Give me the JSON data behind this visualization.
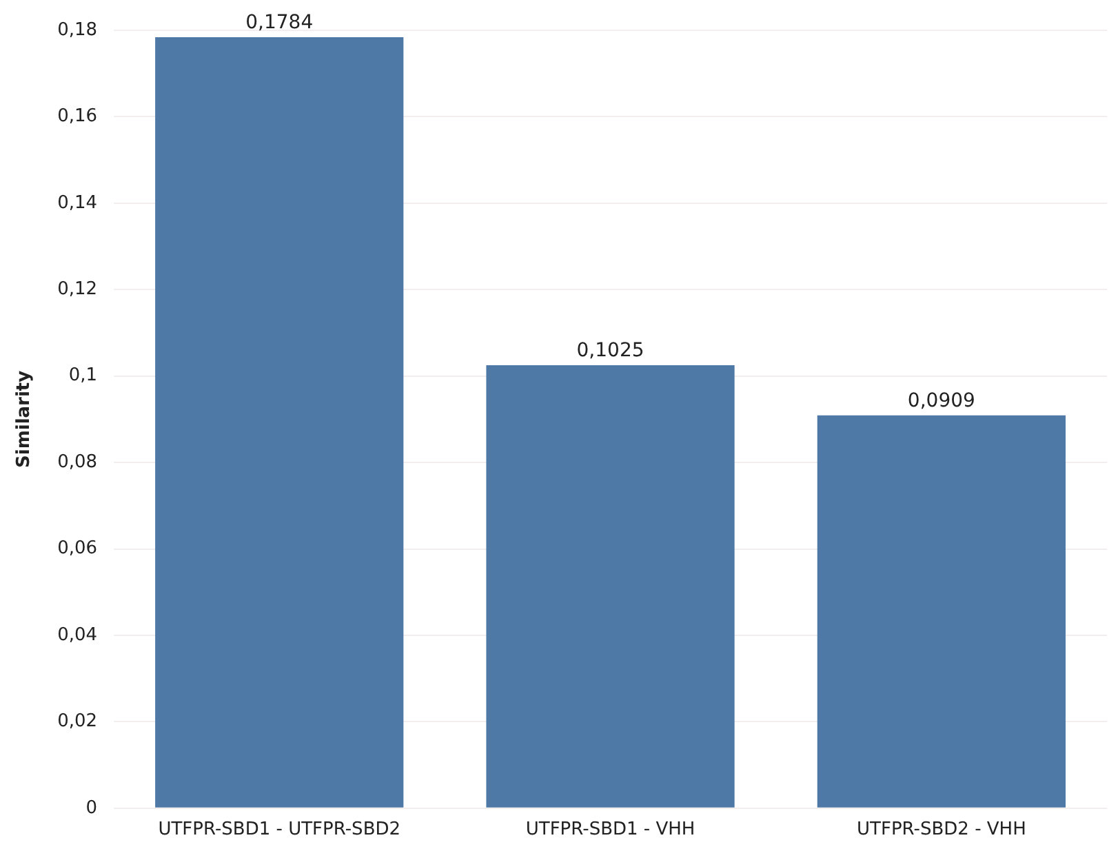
{
  "chart_data": {
    "type": "bar",
    "ylabel": "Similarity",
    "categories": [
      "UTFPR-SBD1 - UTFPR-SBD2",
      "UTFPR-SBD1 - VHH",
      "UTFPR-SBD2 - VHH"
    ],
    "values": [
      0.1784,
      0.1025,
      0.0909
    ],
    "value_labels": [
      "0,1784",
      "0,1025",
      "0,0909"
    ],
    "color": "#4e79a7",
    "ylim": [
      0,
      0.18
    ],
    "yticks": [
      {
        "value": 0,
        "label": "0"
      },
      {
        "value": 0.02,
        "label": "0,02"
      },
      {
        "value": 0.04,
        "label": "0,04"
      },
      {
        "value": 0.06,
        "label": "0,06"
      },
      {
        "value": 0.08,
        "label": "0,08"
      },
      {
        "value": 0.1,
        "label": "0,1"
      },
      {
        "value": 0.12,
        "label": "0,12"
      },
      {
        "value": 0.14,
        "label": "0,14"
      },
      {
        "value": 0.16,
        "label": "0,16"
      },
      {
        "value": 0.18,
        "label": "0,18"
      }
    ],
    "grid": "y",
    "legend": false
  }
}
